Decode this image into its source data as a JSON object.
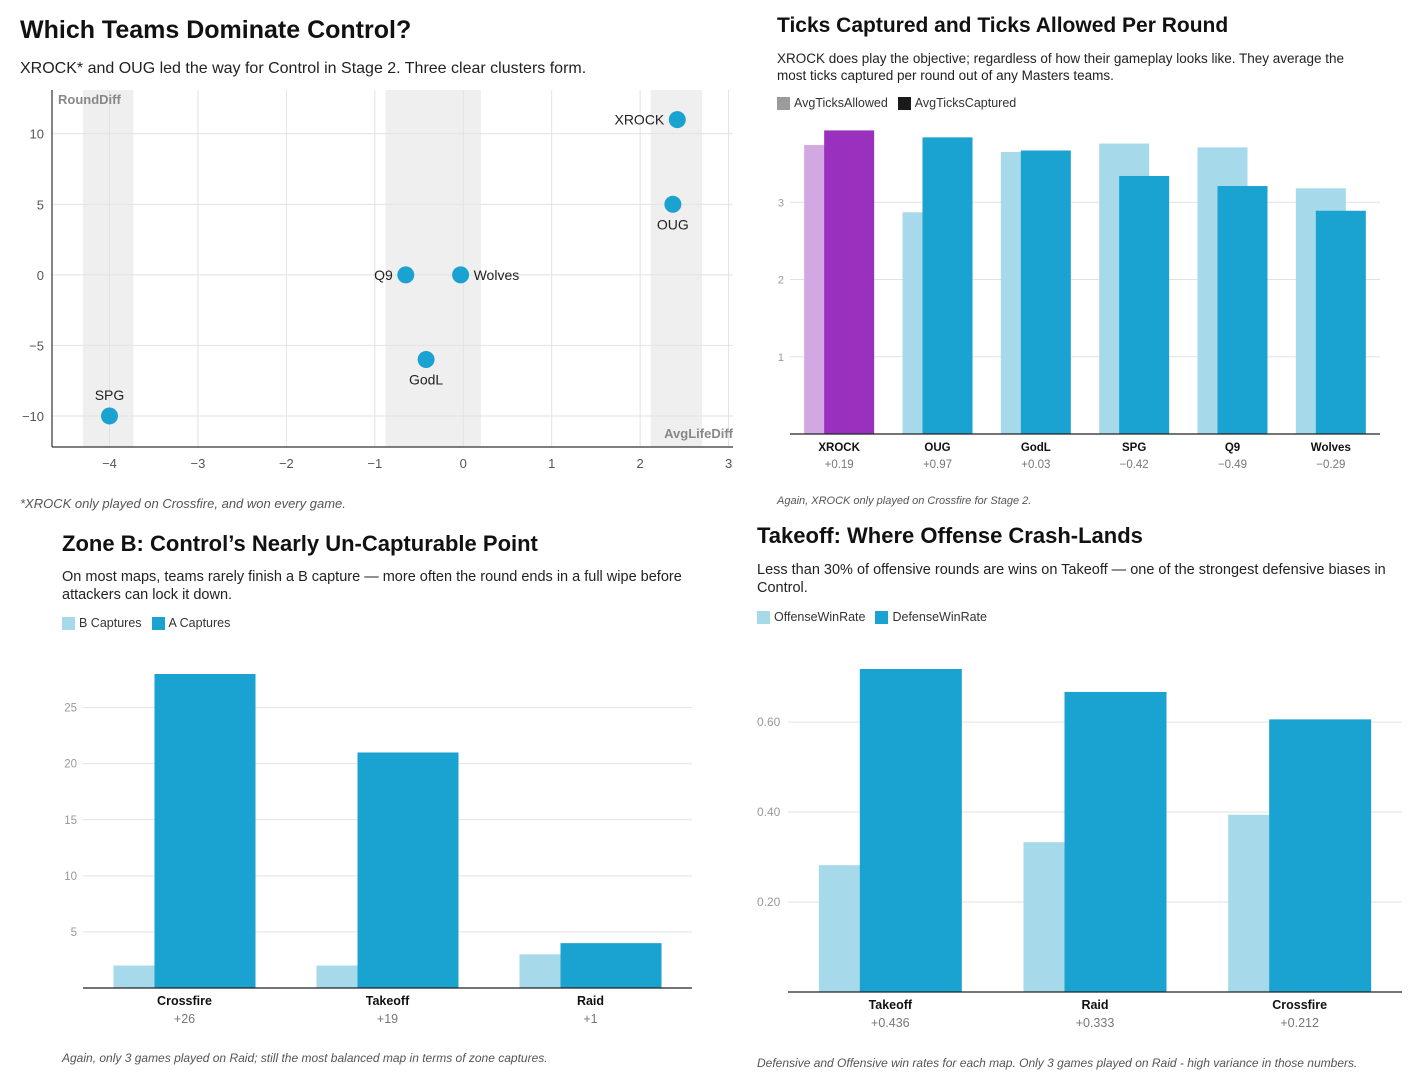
{
  "colors": {
    "primary": "#1aa2d0",
    "light": "#a6d9ea",
    "highlight_dark": "#9a30be",
    "highlight_light": "#d1a8e2",
    "shade": "#efefef",
    "grid": "#e2e2e2",
    "legend_gray": "#9b9b9b",
    "legend_black": "#1a1a1a"
  },
  "chart_data": [
    {
      "type": "scatter",
      "title": "Which Teams Dominate Control?",
      "subtitle": "XROCK* and OUG led the way for Control in Stage 2. Three clear clusters form.",
      "xlabel": "AvgLifeDiff",
      "ylabel": "RoundDiff",
      "xlim": [
        -4.65,
        3.05
      ],
      "ylim": [
        -12.2,
        13.1
      ],
      "xticks": [
        -4,
        -3,
        -2,
        -1,
        0,
        1,
        2,
        3
      ],
      "yticks": [
        -10,
        -5,
        0,
        5,
        10
      ],
      "shaded_x_bands": [
        [
          -4.3,
          -3.73
        ],
        [
          -0.88,
          0.2
        ],
        [
          2.12,
          2.7
        ]
      ],
      "points": [
        {
          "label": "XROCK",
          "x": 2.42,
          "y": 11.0,
          "label_pos": "left"
        },
        {
          "label": "OUG",
          "x": 2.37,
          "y": 5.0,
          "label_pos": "below"
        },
        {
          "label": "Wolves",
          "x": -0.03,
          "y": 0.0,
          "label_pos": "right"
        },
        {
          "label": "Q9",
          "x": -0.65,
          "y": 0.0,
          "label_pos": "left"
        },
        {
          "label": "GodL",
          "x": -0.42,
          "y": -6.0,
          "label_pos": "below"
        },
        {
          "label": "SPG",
          "x": -4.0,
          "y": -10.0,
          "label_pos": "above"
        }
      ],
      "footnote": "*XROCK only played on Crossfire, and won every game."
    },
    {
      "type": "bar",
      "title": "Ticks Captured and Ticks Allowed Per Round",
      "subtitle": "XROCK does play the objective; regardless of how their gameplay looks like. They average the most ticks captured per round out of any Masters teams.",
      "categories": [
        "XROCK",
        "OUG",
        "GodL",
        "SPG",
        "Q9",
        "Wolves"
      ],
      "category_sublabels": [
        "+0.19",
        "+0.97",
        "+0.03",
        "−0.42",
        "−0.49",
        "−0.29"
      ],
      "series": [
        {
          "name": "AvgTicksAllowed",
          "values": [
            3.74,
            2.87,
            3.65,
            3.76,
            3.71,
            3.18
          ]
        },
        {
          "name": "AvgTicksCaptured",
          "values": [
            3.93,
            3.84,
            3.67,
            3.34,
            3.21,
            2.89
          ]
        }
      ],
      "yticks": [
        1,
        2,
        3
      ],
      "ylim": [
        0,
        4.0
      ],
      "highlight_category": "XROCK",
      "legend": "top-left",
      "footnote": "Again, XROCK only played on Crossfire for Stage 2."
    },
    {
      "type": "bar",
      "title": "Zone B: Control’s Nearly Un-Capturable Point",
      "subtitle": "On most maps, teams rarely finish a B capture — more often the round ends in a full wipe before attackers can lock it down.",
      "categories": [
        "Crossfire",
        "Takeoff",
        "Raid"
      ],
      "category_sublabels": [
        "+26",
        "+19",
        "+1"
      ],
      "series": [
        {
          "name": "B Captures",
          "values": [
            2,
            2,
            3
          ]
        },
        {
          "name": "A Captures",
          "values": [
            28,
            21,
            4
          ]
        }
      ],
      "yticks": [
        5,
        10,
        15,
        20,
        25
      ],
      "ylim": [
        0,
        28
      ],
      "legend": "top-left",
      "footnote": "Again, only 3 games played on Raid; still the most balanced map in terms of zone captures."
    },
    {
      "type": "bar",
      "title": "Takeoff: Where Offense Crash-Lands",
      "subtitle": "Less than 30% of offensive rounds are wins on Takeoff — one of the strongest defensive biases in Control.",
      "categories": [
        "Takeoff",
        "Raid",
        "Crossfire"
      ],
      "category_sublabels": [
        "+0.436",
        "+0.333",
        "+0.212"
      ],
      "series": [
        {
          "name": "OffenseWinRate",
          "values": [
            0.282,
            0.333,
            0.394
          ]
        },
        {
          "name": "DefenseWinRate",
          "values": [
            0.718,
            0.667,
            0.606
          ]
        }
      ],
      "yticks": [
        0.2,
        0.4,
        0.6
      ],
      "ytick_labels": [
        "0.20",
        "0.40",
        "0.60"
      ],
      "ylim": [
        0,
        0.718
      ],
      "legend": "top-left",
      "footnote": "Defensive and Offensive win rates for each map. Only 3 games played on Raid - high variance in those numbers."
    }
  ]
}
